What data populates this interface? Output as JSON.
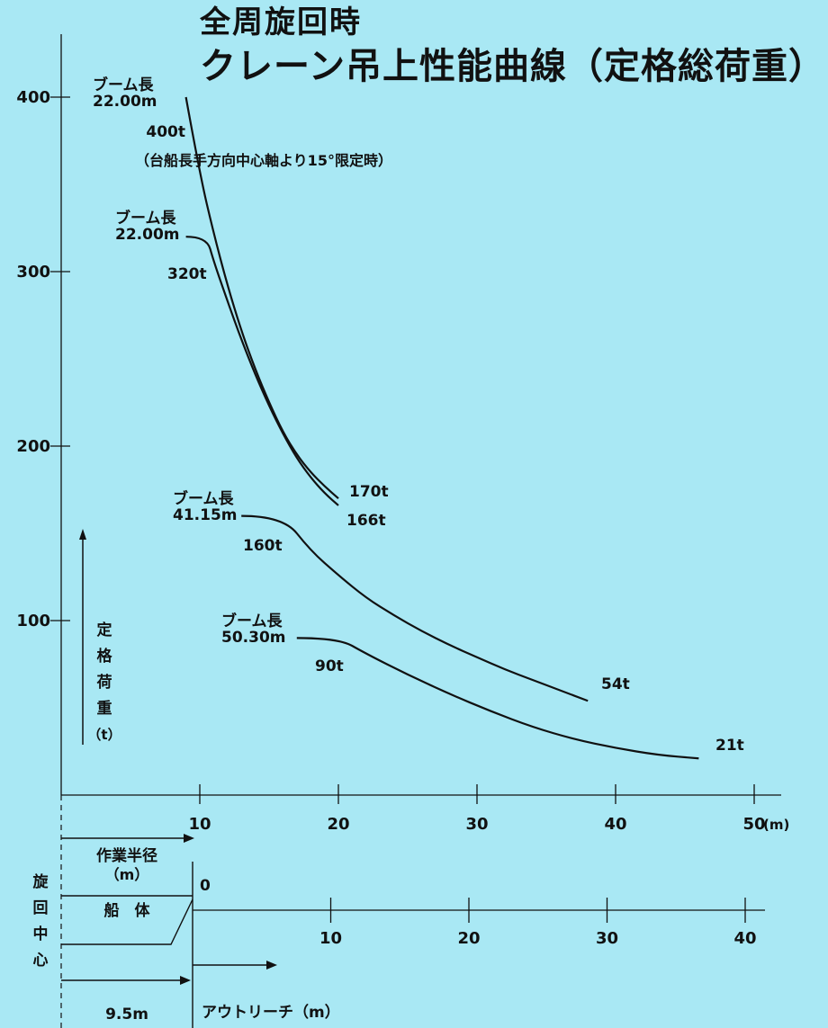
{
  "title_line1": "全周旋回時",
  "title_line2": "クレーン吊上性能曲線（定格総荷重）",
  "chart_data": {
    "type": "line",
    "y_axis": {
      "label_chars": [
        "定",
        "格",
        "荷",
        "重",
        "（t）"
      ],
      "ticks": [
        100,
        200,
        300,
        400
      ],
      "range": [
        0,
        430
      ]
    },
    "x_axis": {
      "ticks": [
        "10",
        "20",
        "30",
        "40",
        "50"
      ],
      "tick_values": [
        10,
        20,
        30,
        40,
        50
      ],
      "unit": "(m)",
      "range": [
        0,
        51
      ],
      "work_radius_label": [
        "作業半径",
        "（m）"
      ]
    },
    "outreach_axis": {
      "ticks": [
        "10",
        "20",
        "30",
        "40"
      ],
      "tick_values": [
        10,
        20,
        30,
        40
      ],
      "zero_label": "0",
      "label": "アウトリーチ（m）",
      "hull_label": "船　体",
      "slew_center_chars": [
        "旋",
        "回",
        "中",
        "心"
      ],
      "offset_label": "9.5m",
      "offset_value": 9.5
    },
    "series": [
      {
        "boom_label": [
          "ブーム長",
          "22.00m"
        ],
        "max_label": "400t",
        "note": "（台船長手方向中心軸より15°限定時）",
        "end_label": "170t",
        "points": [
          [
            9,
            400
          ],
          [
            10,
            356
          ],
          [
            11,
            322
          ],
          [
            12,
            292
          ],
          [
            13,
            266
          ],
          [
            14,
            244
          ],
          [
            15,
            225
          ],
          [
            16,
            208
          ],
          [
            17,
            195
          ],
          [
            18,
            185
          ],
          [
            19,
            177
          ],
          [
            20,
            170
          ]
        ]
      },
      {
        "boom_label": [
          "ブーム長",
          "22.00m"
        ],
        "max_label": "320t",
        "end_label": "166t",
        "points": [
          [
            9,
            320
          ],
          [
            10.5,
            320
          ],
          [
            11,
            306
          ],
          [
            12,
            283
          ],
          [
            13,
            261
          ],
          [
            14,
            241
          ],
          [
            15,
            223
          ],
          [
            16,
            207
          ],
          [
            17,
            193
          ],
          [
            18,
            182
          ],
          [
            19,
            173
          ],
          [
            20,
            166
          ]
        ]
      },
      {
        "boom_label": [
          "ブーム長",
          "41.15m"
        ],
        "max_label": "160t",
        "end_label": "54t",
        "points": [
          [
            13,
            160
          ],
          [
            16,
            160
          ],
          [
            18,
            140
          ],
          [
            20,
            126
          ],
          [
            22,
            113
          ],
          [
            24,
            103
          ],
          [
            26,
            94
          ],
          [
            28,
            86
          ],
          [
            30,
            79
          ],
          [
            32,
            72
          ],
          [
            34,
            66
          ],
          [
            36,
            60
          ],
          [
            38,
            54
          ]
        ]
      },
      {
        "boom_label": [
          "ブーム長",
          "50.30m"
        ],
        "max_label": "90t",
        "end_label": "21t",
        "points": [
          [
            17,
            90
          ],
          [
            20,
            90
          ],
          [
            22,
            81
          ],
          [
            25,
            69
          ],
          [
            28,
            58
          ],
          [
            31,
            48
          ],
          [
            34,
            39
          ],
          [
            37,
            32
          ],
          [
            40,
            27
          ],
          [
            43,
            23
          ],
          [
            46,
            21
          ]
        ]
      }
    ]
  }
}
